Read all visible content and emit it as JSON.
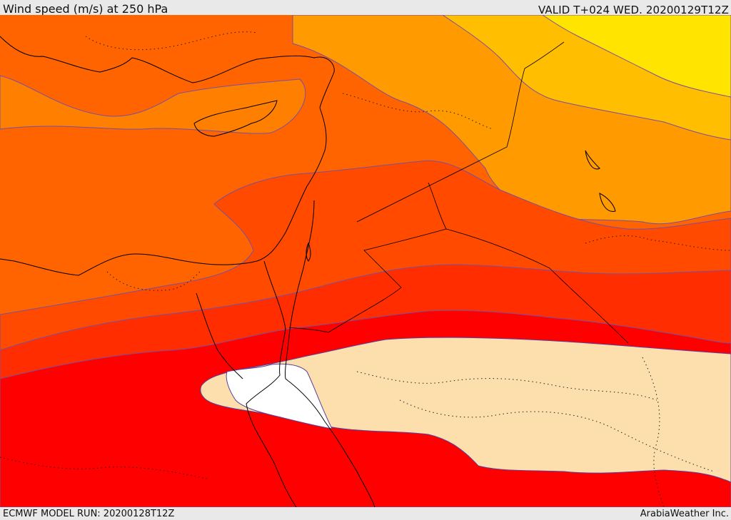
{
  "header": {
    "title": "Wind speed (m/s) at 250 hPa",
    "valid_time": "VALID T+024 WED. 20200129T12Z"
  },
  "footer": {
    "model_run": "ECMWF MODEL RUN: 20200128T12Z",
    "credit": "ArabiaWeather Inc."
  },
  "map": {
    "colors": {
      "band_yellow": "#ffe400",
      "band_gold": "#ffbe00",
      "band_amber": "#ff9a00",
      "band_orange": "#ff7f00",
      "band_dark_orange": "#ff6400",
      "band_red_orange": "#ff4a00",
      "band_orange_red": "#ff2d00",
      "band_red": "#ff0000",
      "band_peach": "#fddfad",
      "band_white": "#ffffff",
      "contour_line": "#7a4fa0",
      "coastline": "#000000"
    }
  }
}
